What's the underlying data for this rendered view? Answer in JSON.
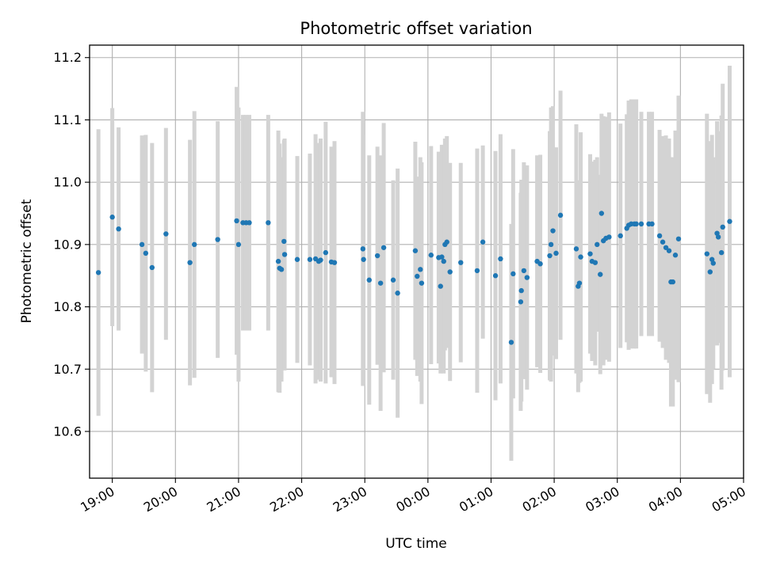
{
  "chart_data": {
    "type": "scatter",
    "title": "Photometric offset variation",
    "xlabel": "UTC time",
    "ylabel": "Photometric offset",
    "grid": true,
    "xlim": [
      18.64,
      29.0
    ],
    "ylim": [
      10.525,
      11.22
    ],
    "x_ticks": [
      {
        "label": "19:00",
        "x": 19.0
      },
      {
        "label": "20:00",
        "x": 20.0
      },
      {
        "label": "21:00",
        "x": 21.0
      },
      {
        "label": "22:00",
        "x": 22.0
      },
      {
        "label": "23:00",
        "x": 23.0
      },
      {
        "label": "00:00",
        "x": 24.0
      },
      {
        "label": "01:00",
        "x": 25.0
      },
      {
        "label": "02:00",
        "x": 26.0
      },
      {
        "label": "03:00",
        "x": 27.0
      },
      {
        "label": "04:00",
        "x": 28.0
      },
      {
        "label": "05:00",
        "x": 29.0
      }
    ],
    "y_ticks": [
      "10.6",
      "10.7",
      "10.8",
      "10.9",
      "11.0",
      "11.1",
      "11.2"
    ],
    "colors": {
      "point": "#1f77b4",
      "errorbar": "#d3d3d3",
      "grid": "#b0b0b0"
    },
    "points": [
      [
        18.78,
        10.855,
        0.23
      ],
      [
        19.0,
        10.944,
        0.175
      ],
      [
        19.1,
        10.925,
        0.163
      ],
      [
        19.47,
        10.9,
        0.175
      ],
      [
        19.53,
        10.886,
        0.19
      ],
      [
        19.63,
        10.863,
        0.2
      ],
      [
        19.85,
        10.917,
        0.17
      ],
      [
        20.23,
        10.871,
        0.197
      ],
      [
        20.3,
        10.9,
        0.214
      ],
      [
        20.67,
        10.908,
        0.19
      ],
      [
        20.97,
        10.938,
        0.215
      ],
      [
        21.0,
        10.9,
        0.22
      ],
      [
        21.07,
        10.935,
        0.173
      ],
      [
        21.12,
        10.935,
        0.173
      ],
      [
        21.17,
        10.935,
        0.173
      ],
      [
        21.47,
        10.935,
        0.173
      ],
      [
        21.63,
        10.873,
        0.21
      ],
      [
        21.65,
        10.862,
        0.2
      ],
      [
        21.68,
        10.86,
        0.18
      ],
      [
        21.72,
        10.905,
        0.163
      ],
      [
        21.73,
        10.884,
        0.186
      ],
      [
        21.93,
        10.876,
        0.166
      ],
      [
        22.13,
        10.876,
        0.17
      ],
      [
        22.22,
        10.877,
        0.2
      ],
      [
        22.27,
        10.873,
        0.19
      ],
      [
        22.3,
        10.875,
        0.195
      ],
      [
        22.38,
        10.887,
        0.21
      ],
      [
        22.47,
        10.872,
        0.185
      ],
      [
        22.52,
        10.871,
        0.195
      ],
      [
        22.97,
        10.893,
        0.22
      ],
      [
        22.98,
        10.876,
        0.2
      ],
      [
        23.07,
        10.843,
        0.2
      ],
      [
        23.2,
        10.882,
        0.175
      ],
      [
        23.25,
        10.838,
        0.205
      ],
      [
        23.3,
        10.895,
        0.2
      ],
      [
        23.45,
        10.843,
        0.16
      ],
      [
        23.52,
        10.822,
        0.2
      ],
      [
        23.8,
        10.89,
        0.175
      ],
      [
        23.83,
        10.849,
        0.16
      ],
      [
        23.88,
        10.86,
        0.18
      ],
      [
        23.9,
        10.838,
        0.194
      ],
      [
        24.05,
        10.883,
        0.175
      ],
      [
        24.17,
        10.879,
        0.17
      ],
      [
        24.2,
        10.833,
        0.14
      ],
      [
        24.22,
        10.88,
        0.18
      ],
      [
        24.25,
        10.873,
        0.18
      ],
      [
        24.27,
        10.9,
        0.17
      ],
      [
        24.3,
        10.904,
        0.17
      ],
      [
        24.35,
        10.856,
        0.175
      ],
      [
        24.52,
        10.871,
        0.16
      ],
      [
        24.78,
        10.858,
        0.196
      ],
      [
        24.87,
        10.904,
        0.155
      ],
      [
        25.07,
        10.85,
        0.2
      ],
      [
        25.15,
        10.877,
        0.2
      ],
      [
        25.32,
        10.743,
        0.19
      ],
      [
        25.35,
        10.853,
        0.2
      ],
      [
        25.47,
        10.808,
        0.175
      ],
      [
        25.48,
        10.826,
        0.178
      ],
      [
        25.52,
        10.858,
        0.174
      ],
      [
        25.57,
        10.847,
        0.18
      ],
      [
        25.73,
        10.873,
        0.17
      ],
      [
        25.78,
        10.869,
        0.175
      ],
      [
        25.93,
        10.882,
        0.2
      ],
      [
        25.95,
        10.9,
        0.22
      ],
      [
        25.98,
        10.922,
        0.2
      ],
      [
        26.03,
        10.886,
        0.17
      ],
      [
        26.1,
        10.947,
        0.2
      ],
      [
        26.35,
        10.893,
        0.2
      ],
      [
        26.38,
        10.833,
        0.17
      ],
      [
        26.4,
        10.838,
        0.16
      ],
      [
        26.42,
        10.88,
        0.2
      ],
      [
        26.57,
        10.885,
        0.16
      ],
      [
        26.6,
        10.873,
        0.16
      ],
      [
        26.65,
        10.871,
        0.165
      ],
      [
        26.68,
        10.9,
        0.14
      ],
      [
        26.73,
        10.852,
        0.16
      ],
      [
        26.75,
        10.95,
        0.16
      ],
      [
        26.78,
        10.906,
        0.2
      ],
      [
        26.82,
        10.91,
        0.195
      ],
      [
        26.87,
        10.912,
        0.2
      ],
      [
        27.05,
        10.914,
        0.18
      ],
      [
        27.15,
        10.926,
        0.183
      ],
      [
        27.18,
        10.931,
        0.2
      ],
      [
        27.22,
        10.933,
        0.2
      ],
      [
        27.27,
        10.933,
        0.2
      ],
      [
        27.3,
        10.933,
        0.2
      ],
      [
        27.38,
        10.933,
        0.18
      ],
      [
        27.5,
        10.933,
        0.18
      ],
      [
        27.55,
        10.933,
        0.18
      ],
      [
        27.67,
        10.914,
        0.17
      ],
      [
        27.72,
        10.904,
        0.17
      ],
      [
        27.77,
        10.895,
        0.18
      ],
      [
        27.82,
        10.89,
        0.18
      ],
      [
        27.85,
        10.84,
        0.2
      ],
      [
        27.88,
        10.84,
        0.2
      ],
      [
        27.92,
        10.883,
        0.2
      ],
      [
        27.97,
        10.909,
        0.23
      ],
      [
        28.42,
        10.885,
        0.225
      ],
      [
        28.47,
        10.856,
        0.21
      ],
      [
        28.5,
        10.876,
        0.2
      ],
      [
        28.52,
        10.87,
        0.17
      ],
      [
        28.58,
        10.918,
        0.18
      ],
      [
        28.6,
        10.912,
        0.17
      ],
      [
        28.65,
        10.887,
        0.22
      ],
      [
        28.67,
        10.928,
        0.23
      ],
      [
        28.78,
        10.937,
        0.25
      ]
    ]
  }
}
